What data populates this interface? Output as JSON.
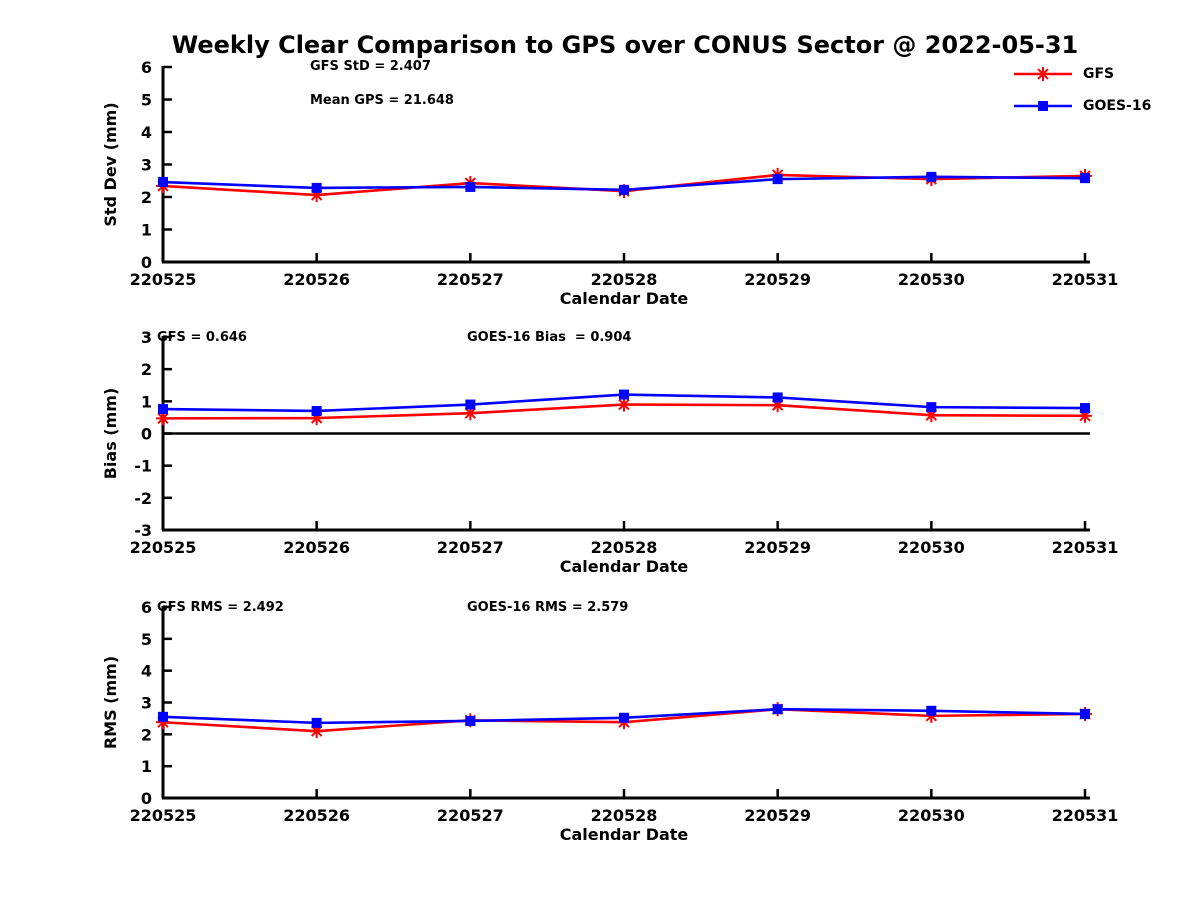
{
  "title": "Weekly Clear Comparison to GPS over CONUS Sector @ 2022-05-31",
  "colors": {
    "gfs": "#ff0000",
    "goes16": "#0000ff",
    "axis": "#000000",
    "zero_line": "#000000",
    "background": "#ffffff"
  },
  "legend": {
    "items": [
      {
        "label": "GFS",
        "color": "#ff0000",
        "marker": "asterisk"
      },
      {
        "label": "GOES-16",
        "color": "#0000ff",
        "marker": "square"
      }
    ]
  },
  "chart_data": [
    {
      "type": "line",
      "name": "std_dev",
      "title": "",
      "xlabel": "Calendar Date",
      "ylabel": "Std Dev (mm)",
      "ylim": [
        0,
        6
      ],
      "yticks": [
        6,
        5,
        4,
        3,
        2,
        1,
        0
      ],
      "categories": [
        "220525",
        "220526",
        "220527",
        "220528",
        "220529",
        "220530",
        "220531"
      ],
      "annotations": [
        "GFS StD = 2.407",
        "Mean GPS = 21.648"
      ],
      "zero_line": false,
      "grid": false,
      "legend_position": "top-right-outside",
      "series": [
        {
          "name": "GFS",
          "color": "#ff0000",
          "marker": "asterisk",
          "values": [
            2.34,
            2.06,
            2.43,
            2.18,
            2.68,
            2.55,
            2.65
          ]
        },
        {
          "name": "GOES-16",
          "color": "#0000ff",
          "marker": "square",
          "values": [
            2.46,
            2.28,
            2.31,
            2.22,
            2.55,
            2.62,
            2.58
          ]
        }
      ]
    },
    {
      "type": "line",
      "name": "bias",
      "title": "",
      "xlabel": "Calendar Date",
      "ylabel": "Bias (mm)",
      "ylim": [
        -3,
        3
      ],
      "yticks": [
        3,
        2,
        1,
        0,
        -1,
        -2,
        -3
      ],
      "categories": [
        "220525",
        "220526",
        "220527",
        "220528",
        "220529",
        "220530",
        "220531"
      ],
      "annotations": [
        "GFS = 0.646",
        "GOES-16 Bias  = 0.904"
      ],
      "zero_line": true,
      "grid": false,
      "series": [
        {
          "name": "GFS",
          "color": "#ff0000",
          "marker": "asterisk",
          "values": [
            0.47,
            0.48,
            0.63,
            0.9,
            0.88,
            0.57,
            0.55
          ]
        },
        {
          "name": "GOES-16",
          "color": "#0000ff",
          "marker": "square",
          "values": [
            0.76,
            0.7,
            0.9,
            1.21,
            1.12,
            0.82,
            0.79
          ]
        }
      ]
    },
    {
      "type": "line",
      "name": "rms",
      "title": "",
      "xlabel": "Calendar Date",
      "ylabel": "RMS (mm)",
      "ylim": [
        0,
        6
      ],
      "yticks": [
        6,
        5,
        4,
        3,
        2,
        1,
        0
      ],
      "categories": [
        "220525",
        "220526",
        "220527",
        "220528",
        "220529",
        "220530",
        "220531"
      ],
      "annotations": [
        "GFS RMS = 2.492",
        "GOES-16 RMS = 2.579"
      ],
      "zero_line": false,
      "grid": false,
      "series": [
        {
          "name": "GFS",
          "color": "#ff0000",
          "marker": "asterisk",
          "values": [
            2.38,
            2.1,
            2.44,
            2.38,
            2.79,
            2.58,
            2.64
          ]
        },
        {
          "name": "GOES-16",
          "color": "#0000ff",
          "marker": "square",
          "values": [
            2.55,
            2.36,
            2.42,
            2.52,
            2.79,
            2.74,
            2.64
          ]
        }
      ]
    }
  ]
}
